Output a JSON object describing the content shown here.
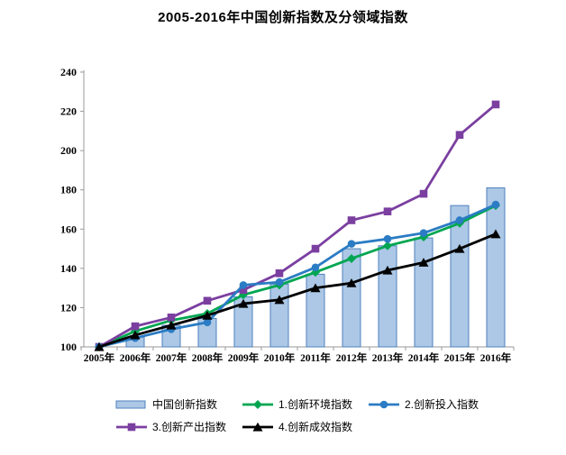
{
  "title": "2005-2016年中国创新指数及分领域指数",
  "axes": {
    "y_ticks": [
      100,
      120,
      140,
      160,
      180,
      200,
      220,
      240
    ],
    "x_ticks": [
      "2005年",
      "2006年",
      "2007年",
      "2008年",
      "2009年",
      "2010年",
      "2011年",
      "2012年",
      "2013年",
      "2014年",
      "2015年",
      "2016年"
    ]
  },
  "colors": {
    "bar_fill": "#ACC8E6",
    "bar_border": "#4F81BD",
    "env_green": "#00A651",
    "input_blue": "#2B7CC4",
    "output_purple": "#7B3FA0",
    "effect_black": "#000000",
    "axis_gray": "#9a9a9a"
  },
  "chart_data": {
    "type": "combo_bar_line",
    "title": "2005-2016年中国创新指数及分领域指数",
    "categories": [
      "2005年",
      "2006年",
      "2007年",
      "2008年",
      "2009年",
      "2010年",
      "2011年",
      "2012年",
      "2013年",
      "2014年",
      "2015年",
      "2016年"
    ],
    "ylim": [
      100,
      240
    ],
    "ytick_step": 20,
    "grid": false,
    "legend_position": "bottom",
    "legend_rows": [
      [
        "中国创新指数",
        "1.创新环境指数",
        "2.创新投入指数"
      ],
      [
        "3.创新产出指数",
        "4.创新成效指数"
      ]
    ],
    "series": [
      {
        "name": "中国创新指数",
        "kind": "bar",
        "marker": "none",
        "color_fill": "#ACC8E6",
        "color_border": "#4F81BD",
        "values": [
          100,
          105,
          111,
          114.5,
          125.5,
          132,
          137,
          150,
          151.5,
          155.5,
          172,
          181
        ]
      },
      {
        "name": "1.创新环境指数",
        "kind": "line",
        "marker": "diamond",
        "color": "#00A651",
        "values": [
          100,
          108,
          113.5,
          117,
          126.5,
          131.5,
          138,
          145,
          151.5,
          156,
          163,
          172
        ]
      },
      {
        "name": "2.创新投入指数",
        "kind": "line",
        "marker": "circle",
        "color": "#2B7CC4",
        "values": [
          100,
          104.5,
          109,
          112.5,
          131.5,
          133,
          140.5,
          152.5,
          155,
          158,
          164.5,
          172.5
        ]
      },
      {
        "name": "3.创新产出指数",
        "kind": "line",
        "marker": "square",
        "color": "#7B3FA0",
        "values": [
          100,
          110.5,
          115,
          123.5,
          129,
          137.5,
          150,
          164.5,
          169,
          178,
          208,
          223.5
        ]
      },
      {
        "name": "4.创新成效指数",
        "kind": "line",
        "marker": "triangle",
        "color": "#000000",
        "values": [
          100,
          106,
          111,
          116,
          122,
          124,
          130,
          132.5,
          139,
          143,
          150,
          157.5
        ]
      }
    ]
  }
}
